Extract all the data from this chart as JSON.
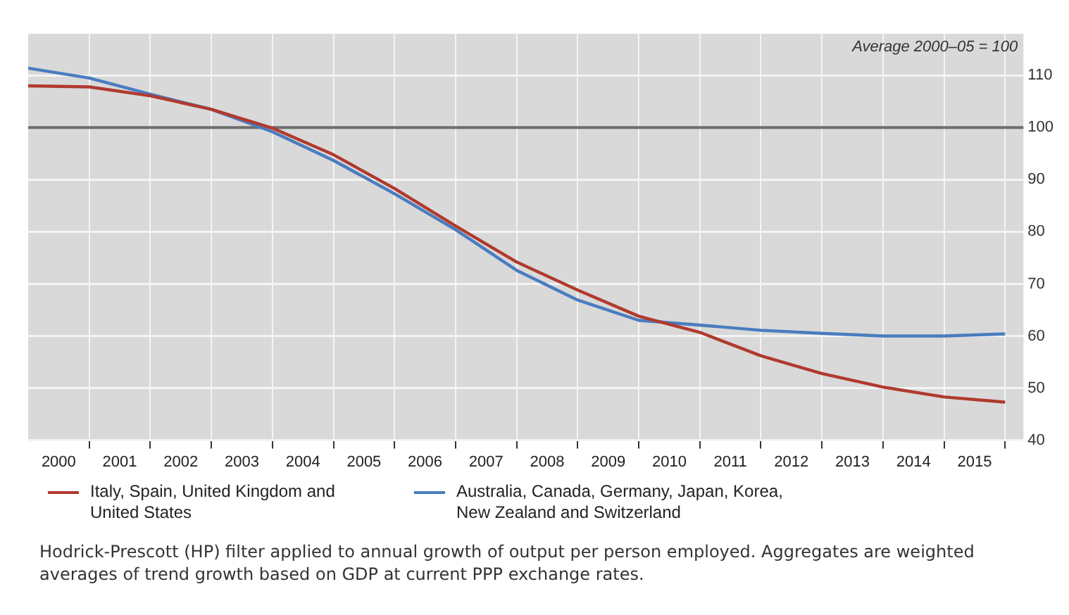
{
  "chart_data": {
    "type": "line",
    "x": [
      2000,
      2001,
      2002,
      2003,
      2004,
      2005,
      2006,
      2007,
      2008,
      2009,
      2010,
      2011,
      2012,
      2013,
      2014,
      2015,
      2016
    ],
    "series": [
      {
        "name": "Italy, Spain, United Kingdom and United States",
        "color": "#b03a2e",
        "values": [
          108,
          107.8,
          106.1,
          103.5,
          99.9,
          94.8,
          88.3,
          81.1,
          74.2,
          68.8,
          63.8,
          60.7,
          56.2,
          52.8,
          50.2,
          48.3,
          47.3
        ]
      },
      {
        "name": "Australia, Canada, Germany, Japan, Korea, New Zealand and Switzerland",
        "color": "#4a7cc0",
        "values": [
          111.4,
          109.5,
          106.4,
          103.5,
          99.2,
          93.7,
          87.3,
          80.4,
          72.6,
          66.9,
          63.0,
          62.1,
          61.1,
          60.5,
          60,
          60,
          60.4
        ]
      }
    ],
    "xlim": [
      2000,
      2016.3
    ],
    "xticks": [
      {
        "value": 2000.5,
        "label": "2000"
      },
      {
        "value": 2001,
        "label": null
      },
      {
        "value": 2001.5,
        "label": "2001"
      },
      {
        "value": 2002,
        "label": null
      },
      {
        "value": 2002.5,
        "label": "2002"
      },
      {
        "value": 2003,
        "label": null
      },
      {
        "value": 2003.5,
        "label": "2003"
      },
      {
        "value": 2004,
        "label": null
      },
      {
        "value": 2004.5,
        "label": "2004"
      },
      {
        "value": 2005,
        "label": null
      },
      {
        "value": 2005.5,
        "label": "2005"
      },
      {
        "value": 2006,
        "label": null
      },
      {
        "value": 2006.5,
        "label": "2006"
      },
      {
        "value": 2007,
        "label": null
      },
      {
        "value": 2007.5,
        "label": "2007"
      },
      {
        "value": 2008,
        "label": null
      },
      {
        "value": 2008.5,
        "label": "2008"
      },
      {
        "value": 2009,
        "label": null
      },
      {
        "value": 2009.5,
        "label": "2009"
      },
      {
        "value": 2010,
        "label": null
      },
      {
        "value": 2010.5,
        "label": "2010"
      },
      {
        "value": 2011,
        "label": null
      },
      {
        "value": 2011.5,
        "label": "2011"
      },
      {
        "value": 2012,
        "label": null
      },
      {
        "value": 2012.5,
        "label": "2012"
      },
      {
        "value": 2013,
        "label": null
      },
      {
        "value": 2013.5,
        "label": "2013"
      },
      {
        "value": 2014,
        "label": null
      },
      {
        "value": 2014.5,
        "label": "2014"
      },
      {
        "value": 2015,
        "label": null
      },
      {
        "value": 2015.5,
        "label": "2015"
      },
      {
        "value": 2016,
        "label": null
      }
    ],
    "ylim": [
      40,
      118
    ],
    "yticks": [
      40,
      50,
      60,
      70,
      80,
      90,
      100,
      110
    ],
    "ref_lines": [
      {
        "axis": "y",
        "value": 100,
        "color": "#6e6e6e"
      }
    ],
    "annotations": [
      "Average 2000–05 = 100",
      "Hodrick-Prescott (HP) filter applied to annual growth of output per person employed. Aggregates are weighted averages of trend growth based on GDP at current PPP exchange rates."
    ],
    "grid": true,
    "legend": "bottom"
  }
}
